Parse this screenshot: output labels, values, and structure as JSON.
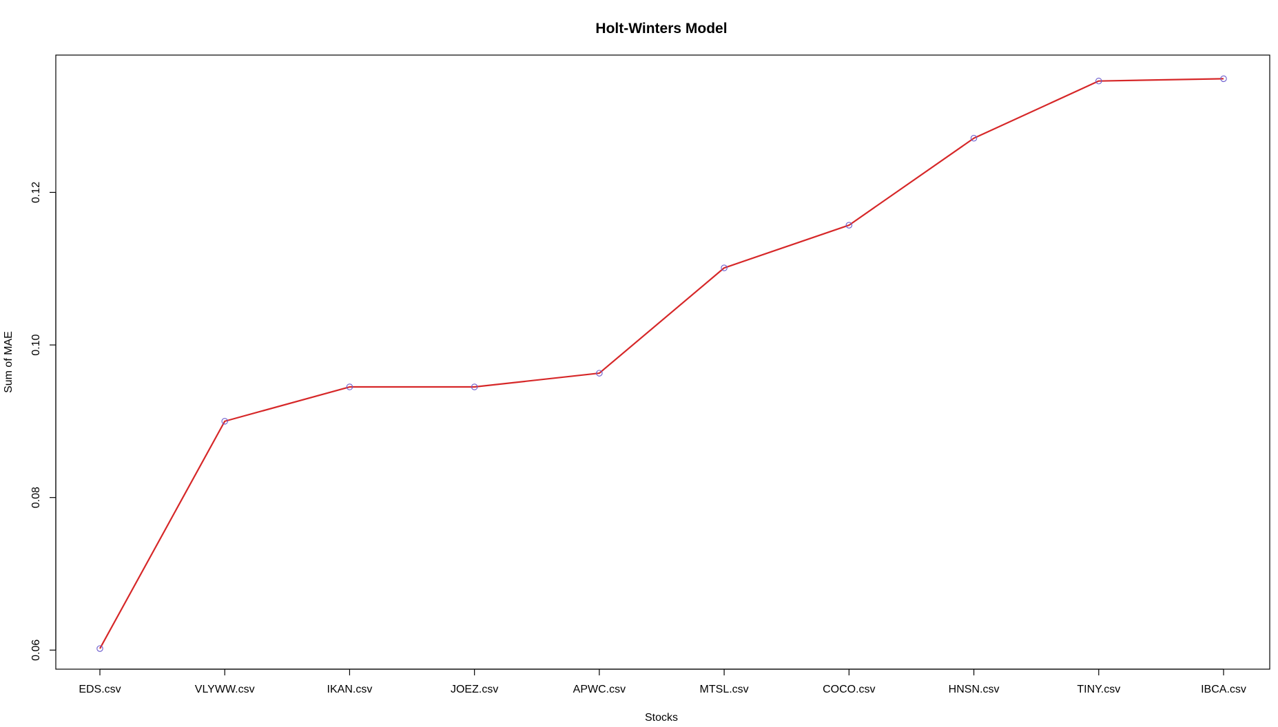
{
  "chart_data": {
    "type": "line",
    "title": "Holt-Winters Model",
    "xlabel": "Stocks",
    "ylabel": "Sum of MAE",
    "categories": [
      "EDS.csv",
      "VLYWW.csv",
      "IKAN.csv",
      "JOEZ.csv",
      "APWC.csv",
      "MTSL.csv",
      "COCO.csv",
      "HNSN.csv",
      "TINY.csv",
      "IBCA.csv"
    ],
    "series": [
      {
        "values": [
          0.0602,
          0.09,
          0.0945,
          0.0945,
          0.0963,
          0.1101,
          0.1157,
          0.1271,
          0.1346,
          0.1349
        ]
      }
    ],
    "yticks": [
      "0.06",
      "0.08",
      "0.10",
      "0.12"
    ],
    "ylim": [
      0.0575,
      0.138
    ],
    "grid": false,
    "legend": "none",
    "colors": {
      "line": "#d62728",
      "marker": "#6a5acd",
      "axis": "#000000"
    }
  }
}
